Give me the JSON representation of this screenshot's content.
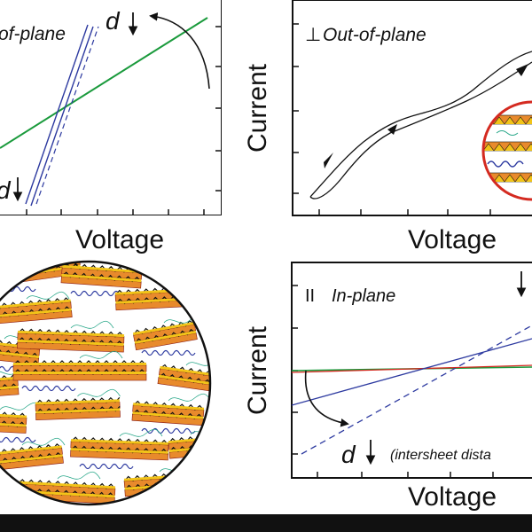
{
  "colors": {
    "green": "#1a9a3c",
    "blue": "#2d3aa0",
    "red": "#d42a20",
    "dark_red": "#8a1a14",
    "orange": "#e88a2c",
    "yellow": "#f2c418",
    "black": "#111111",
    "teal": "#2aa88a"
  },
  "panel_a": {
    "title": "of-plane",
    "xlabel": "Voltage",
    "d_label_top": "d",
    "d_label_bottom": "d"
  },
  "panel_b": {
    "title_symbol": "⊥",
    "title": "Out-of-plane",
    "xlabel": "Voltage",
    "ylabel": "Current"
  },
  "panel_c": {
    "title_symbol": "II",
    "title": "In-plane",
    "xlabel": "Voltage",
    "ylabel": "Current",
    "d_label": "d",
    "d_note": "(intersheet dista"
  }
}
